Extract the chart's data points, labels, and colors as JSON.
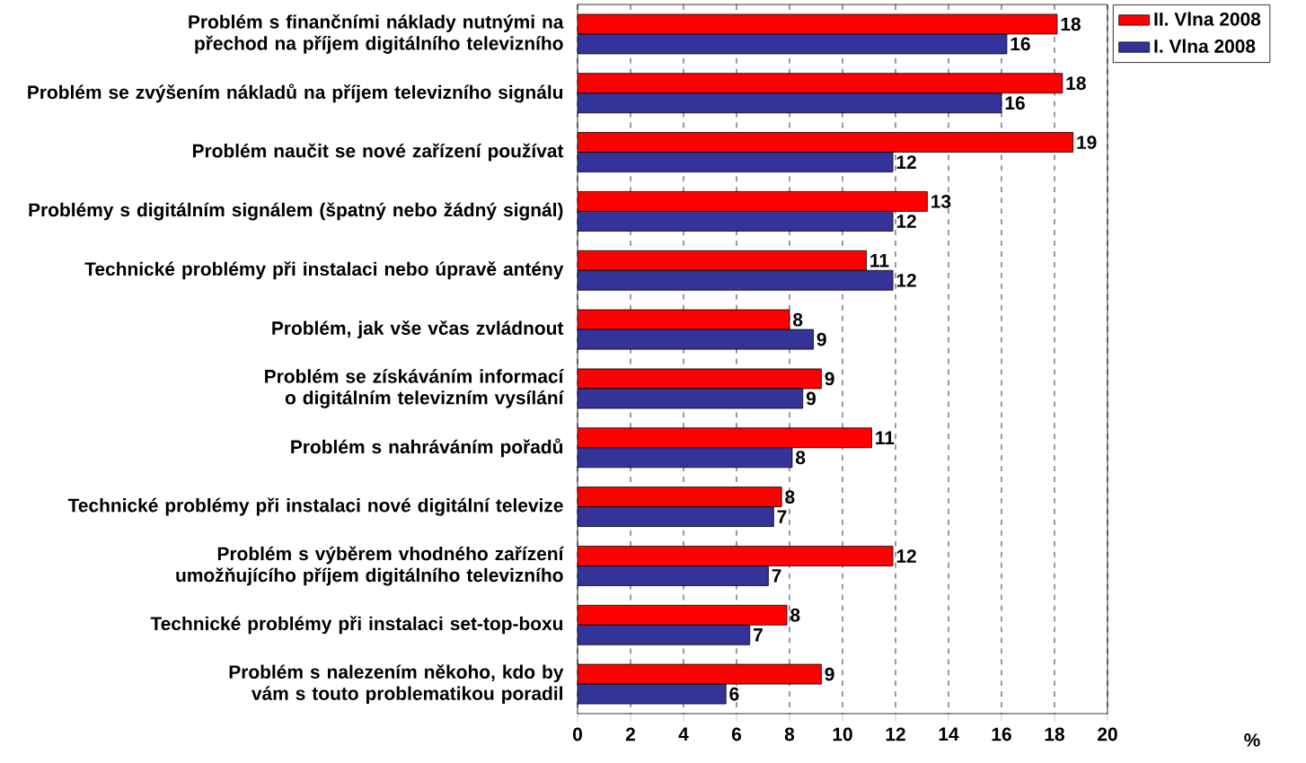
{
  "chart_data": {
    "type": "bar",
    "orientation": "horizontal",
    "annotations": [
      "%"
    ],
    "categories": [
      "Problém s finančními náklady nutnými na přechod na příjem digitálního televizního",
      "Problém se zvýšením nákladů na příjem televizního signálu",
      "Problém naučit se nové zařízení používat",
      "Problémy s digitálním signálem (špatný nebo žádný signál)",
      "Technické problémy při instalaci nebo úpravě antény",
      "Problém, jak vše včas zvládnout",
      "Problém se získáváním informací o digitálním televizním vysílání",
      "Problém s nahráváním pořadů",
      "Technické problémy při instalaci nové digitální televize",
      "Problém s výběrem vhodného zařízení umožňujícího příjem digitálního televizního",
      "Technické problémy při instalaci set-top-boxu",
      "Problém s nalezením někoho, kdo by vám s touto problematikou poradil"
    ],
    "series": [
      {
        "name": "II. Vlna 2008",
        "color": "#ff0000",
        "values": [
          18.1,
          18.3,
          18.7,
          13.2,
          10.9,
          8.0,
          9.2,
          11.1,
          7.7,
          11.9,
          7.9,
          9.2
        ],
        "value_labels": [
          "18",
          "18",
          "19",
          "13",
          "11",
          "8",
          "9",
          "11",
          "8",
          "12",
          "8",
          "9"
        ]
      },
      {
        "name": "I. Vlna 2008",
        "color": "#333399",
        "values": [
          16.2,
          16.0,
          11.9,
          11.9,
          11.9,
          8.9,
          8.5,
          8.1,
          7.4,
          7.2,
          6.5,
          5.6
        ],
        "value_labels": [
          "16",
          "16",
          "12",
          "12",
          "12",
          "9",
          "9",
          "8",
          "7",
          "7",
          "7",
          "6"
        ]
      }
    ],
    "xlim": [
      0,
      20
    ],
    "xticks": [
      0,
      2,
      4,
      6,
      8,
      10,
      12,
      14,
      16,
      18,
      20
    ],
    "grid": "x",
    "legend": "top right"
  }
}
